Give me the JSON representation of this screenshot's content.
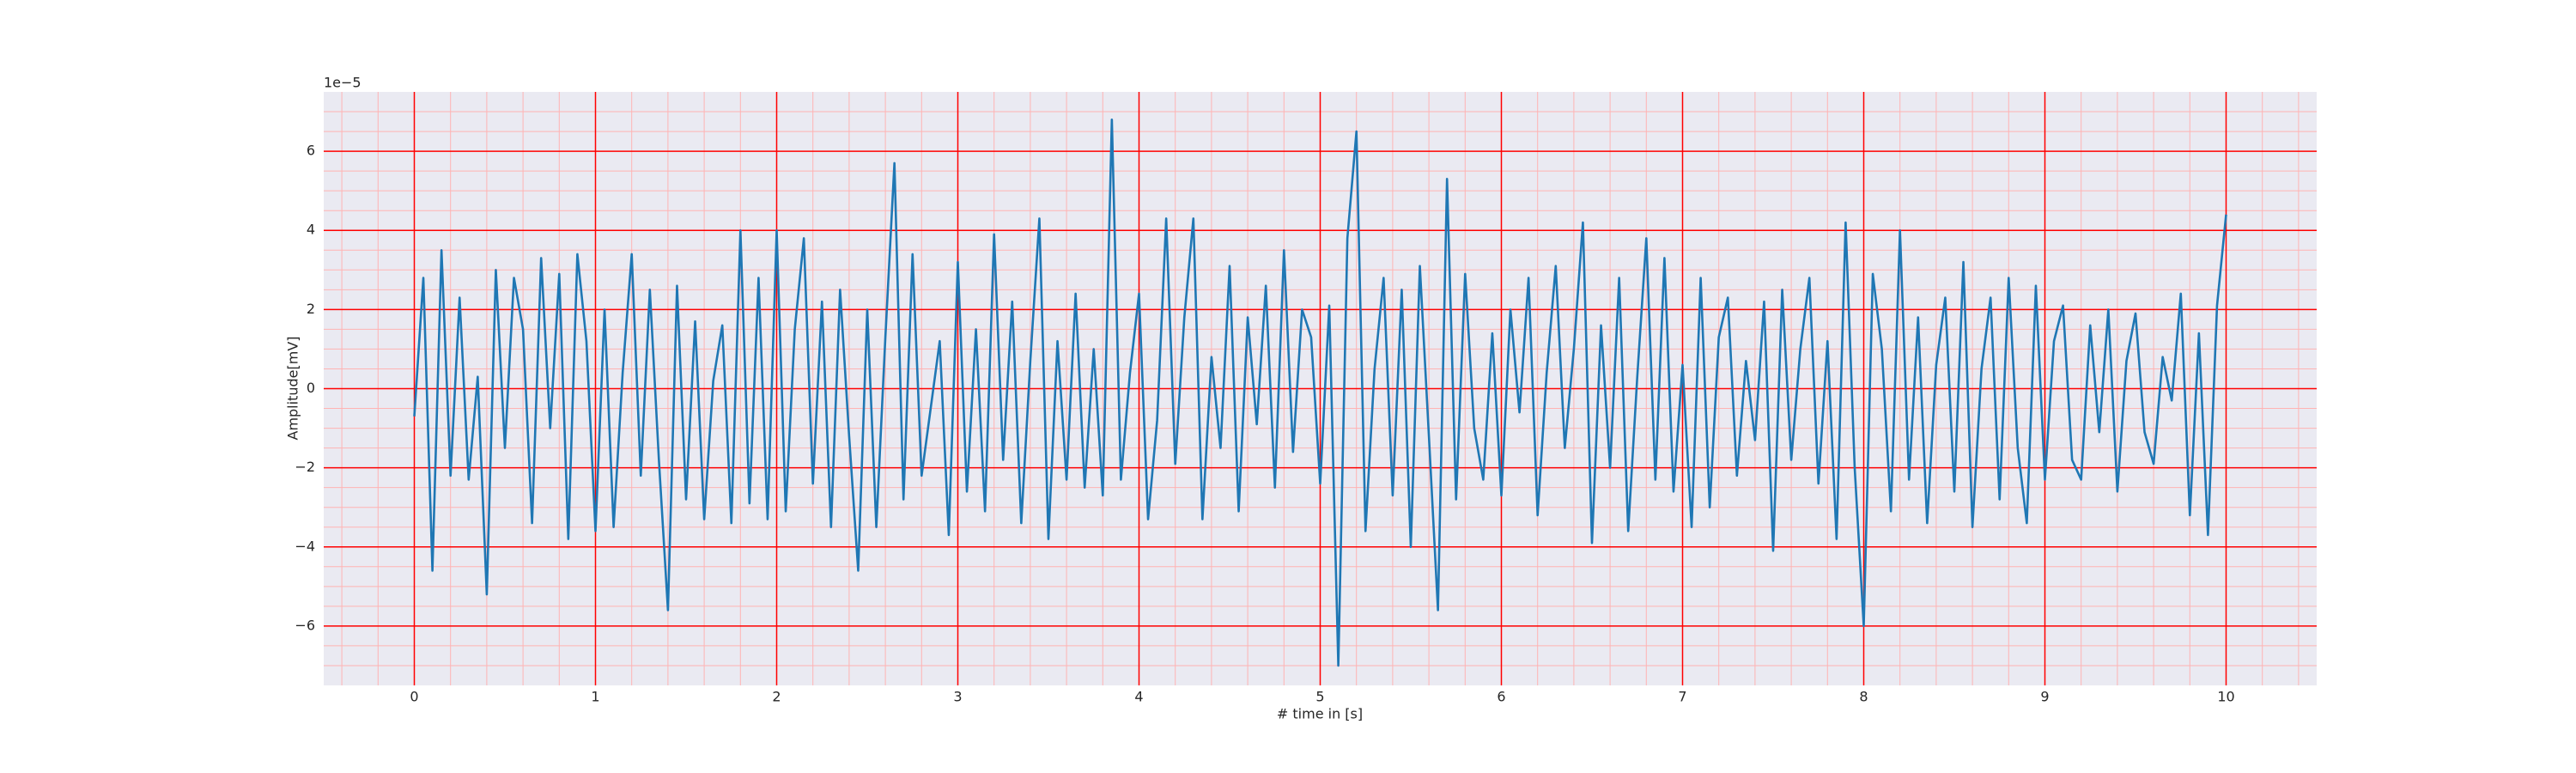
{
  "chart_data": {
    "type": "line",
    "xlabel": "# time in [s]",
    "ylabel": "Amplitude[mV]",
    "y_offset_label": "1e−5",
    "color": "#1f77b4",
    "background": "#eaeaf2",
    "grid": true,
    "grid_color": "#ff0000",
    "minor_grid": true,
    "minor_grid_color": "#ffb3b3",
    "xlim": [
      -0.5,
      10.5
    ],
    "ylim": [
      -7.5,
      7.5
    ],
    "xticks": [
      0,
      1,
      2,
      3,
      4,
      5,
      6,
      7,
      8,
      9,
      10
    ],
    "yticks": [
      {
        "value": -6,
        "label": "−6"
      },
      {
        "value": -4,
        "label": "−4"
      },
      {
        "value": -2,
        "label": "−2"
      },
      0,
      2,
      4,
      6
    ],
    "xminorticks": [
      -0.4,
      -0.2,
      0.2,
      0.4,
      0.6,
      0.8,
      1.2,
      1.4,
      1.6,
      1.8,
      2.2,
      2.4,
      2.6,
      2.8,
      3.2,
      3.4,
      3.6,
      3.8,
      4.2,
      4.4,
      4.6,
      4.8,
      5.2,
      5.4,
      5.6,
      5.8,
      6.2,
      6.4,
      6.6,
      6.8,
      7.2,
      7.4,
      7.6,
      7.8,
      8.2,
      8.4,
      8.6,
      8.8,
      9.2,
      9.4,
      9.6,
      9.8,
      10.2,
      10.4
    ],
    "yminorticks": [
      -7,
      -6.5,
      -5.5,
      -5,
      -4.5,
      -3.5,
      -3,
      -2.5,
      -1.5,
      -1,
      -0.5,
      0.5,
      1,
      1.5,
      2.5,
      3,
      3.5,
      4.5,
      5,
      5.5,
      6.5,
      7
    ],
    "x": [
      0,
      0.05,
      0.1,
      0.15,
      0.2,
      0.25,
      0.3,
      0.35,
      0.4,
      0.45,
      0.5,
      0.55,
      0.6,
      0.65,
      0.7,
      0.75,
      0.8,
      0.85,
      0.9,
      0.95,
      1,
      1.05,
      1.1,
      1.15,
      1.2,
      1.25,
      1.3,
      1.35,
      1.4,
      1.45,
      1.5,
      1.55,
      1.6,
      1.65,
      1.7,
      1.75,
      1.8,
      1.85,
      1.9,
      1.95,
      2,
      2.05,
      2.1,
      2.15,
      2.2,
      2.25,
      2.3,
      2.35,
      2.4,
      2.45,
      2.5,
      2.55,
      2.6,
      2.65,
      2.7,
      2.75,
      2.8,
      2.85,
      2.9,
      2.95,
      3,
      3.05,
      3.1,
      3.15,
      3.2,
      3.25,
      3.3,
      3.35,
      3.4,
      3.45,
      3.5,
      3.55,
      3.6,
      3.65,
      3.7,
      3.75,
      3.8,
      3.85,
      3.9,
      3.95,
      4,
      4.05,
      4.1,
      4.15,
      4.2,
      4.25,
      4.3,
      4.35,
      4.4,
      4.45,
      4.5,
      4.55,
      4.6,
      4.65,
      4.7,
      4.75,
      4.8,
      4.85,
      4.9,
      4.95,
      5,
      5.05,
      5.1,
      5.15,
      5.2,
      5.25,
      5.3,
      5.35,
      5.4,
      5.45,
      5.5,
      5.55,
      5.6,
      5.65,
      5.7,
      5.75,
      5.8,
      5.85,
      5.9,
      5.95,
      6,
      6.05,
      6.1,
      6.15,
      6.2,
      6.25,
      6.3,
      6.35,
      6.4,
      6.45,
      6.5,
      6.55,
      6.6,
      6.65,
      6.7,
      6.75,
      6.8,
      6.85,
      6.9,
      6.95,
      7,
      7.05,
      7.1,
      7.15,
      7.2,
      7.25,
      7.3,
      7.35,
      7.4,
      7.45,
      7.5,
      7.55,
      7.6,
      7.65,
      7.7,
      7.75,
      7.8,
      7.85,
      7.9,
      7.95,
      8,
      8.05,
      8.1,
      8.15,
      8.2,
      8.25,
      8.3,
      8.35,
      8.4,
      8.45,
      8.5,
      8.55,
      8.6,
      8.65,
      8.7,
      8.75,
      8.8,
      8.85,
      8.9,
      8.95,
      9,
      9.05,
      9.1,
      9.15,
      9.2,
      9.25,
      9.3,
      9.35,
      9.4,
      9.45,
      9.5,
      9.55,
      9.6,
      9.65,
      9.7,
      9.75,
      9.8,
      9.85,
      9.9,
      9.95,
      10
    ],
    "values": [
      -0.7,
      2.8,
      -4.6,
      3.5,
      -2.2,
      2.3,
      -2.3,
      0.3,
      -5.2,
      3.0,
      -1.5,
      2.8,
      1.5,
      -3.4,
      3.3,
      -1.0,
      2.9,
      -3.8,
      3.4,
      1.2,
      -3.6,
      2.0,
      -3.5,
      0.4,
      3.4,
      -2.2,
      2.5,
      -1.8,
      -5.6,
      2.6,
      -2.8,
      1.7,
      -3.3,
      0.2,
      1.6,
      -3.4,
      4.0,
      -2.9,
      2.8,
      -3.3,
      4.0,
      -3.1,
      1.5,
      3.8,
      -2.4,
      2.2,
      -3.5,
      2.5,
      -1.2,
      -4.6,
      2.0,
      -3.5,
      1.3,
      5.7,
      -2.8,
      3.4,
      -2.2,
      -0.5,
      1.2,
      -3.7,
      3.2,
      -2.6,
      1.5,
      -3.1,
      3.9,
      -1.8,
      2.2,
      -3.4,
      0.7,
      4.3,
      -3.8,
      1.2,
      -2.3,
      2.4,
      -2.5,
      1.0,
      -2.7,
      6.8,
      -2.3,
      0.4,
      2.4,
      -3.3,
      -0.8,
      4.3,
      -1.9,
      1.8,
      4.3,
      -3.3,
      0.8,
      -1.5,
      3.1,
      -3.1,
      1.8,
      -0.9,
      2.6,
      -2.5,
      3.5,
      -1.6,
      2.0,
      1.3,
      -2.4,
      2.1,
      -7.0,
      3.8,
      6.5,
      -3.6,
      0.5,
      2.8,
      -2.7,
      2.5,
      -4.0,
      3.1,
      -1.2,
      -5.6,
      5.3,
      -2.8,
      2.9,
      -1.0,
      -2.3,
      1.4,
      -2.7,
      2.0,
      -0.6,
      2.8,
      -3.2,
      0.4,
      3.1,
      -1.5,
      1.0,
      4.2,
      -3.9,
      1.6,
      -2.0,
      2.8,
      -3.6,
      0.3,
      3.8,
      -2.3,
      3.3,
      -2.6,
      0.6,
      -3.5,
      2.8,
      -3.0,
      1.3,
      2.3,
      -2.2,
      0.7,
      -1.3,
      2.2,
      -4.1,
      2.5,
      -1.8,
      1.0,
      2.8,
      -2.4,
      1.2,
      -3.8,
      4.2,
      -2.0,
      -6.0,
      2.9,
      1.0,
      -3.1,
      4.0,
      -2.3,
      1.8,
      -3.4,
      0.6,
      2.3,
      -2.6,
      3.2,
      -3.5,
      0.5,
      2.3,
      -2.8,
      2.8,
      -1.5,
      -3.4,
      2.6,
      -2.3,
      1.2,
      2.1,
      -1.8,
      -2.3,
      1.6,
      -1.1,
      2.0,
      -2.6,
      0.7,
      1.9,
      -1.1,
      -1.9,
      0.8,
      -0.3,
      2.4,
      -3.2,
      1.4,
      -3.7,
      2.1,
      4.4
    ]
  }
}
